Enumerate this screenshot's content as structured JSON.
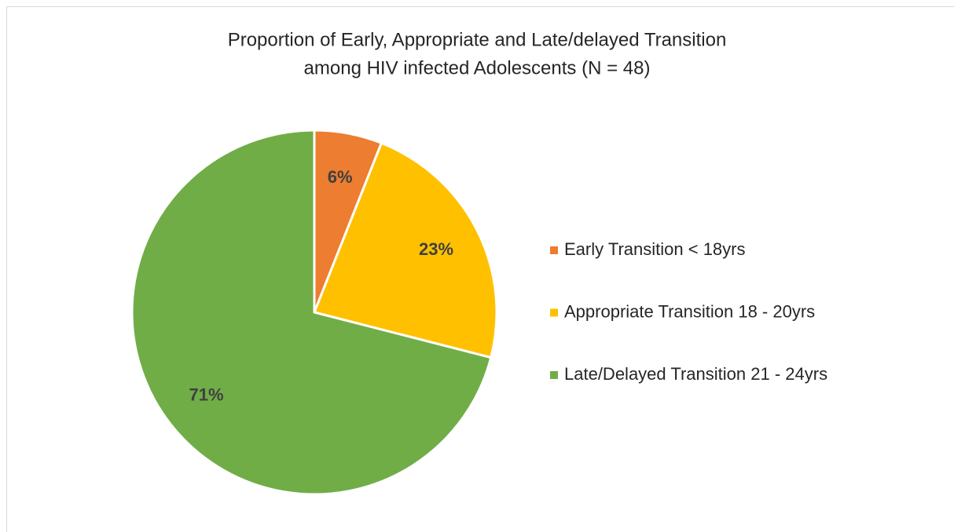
{
  "chart_data": {
    "type": "pie",
    "title": [
      "Proportion of Early, Appropriate and Late/delayed Transition",
      "among HIV infected Adolescents (N = 48)"
    ],
    "categories": [
      "Early Transition < 18yrs",
      "Appropriate Transition 18 - 20yrs",
      "Late/Delayed Transition 21 - 24yrs"
    ],
    "values": [
      6,
      23,
      71
    ],
    "value_labels": [
      "6%",
      "23%",
      "71%"
    ],
    "colors": [
      "#ed7d31",
      "#ffc000",
      "#70ad47"
    ],
    "legend": "right"
  }
}
